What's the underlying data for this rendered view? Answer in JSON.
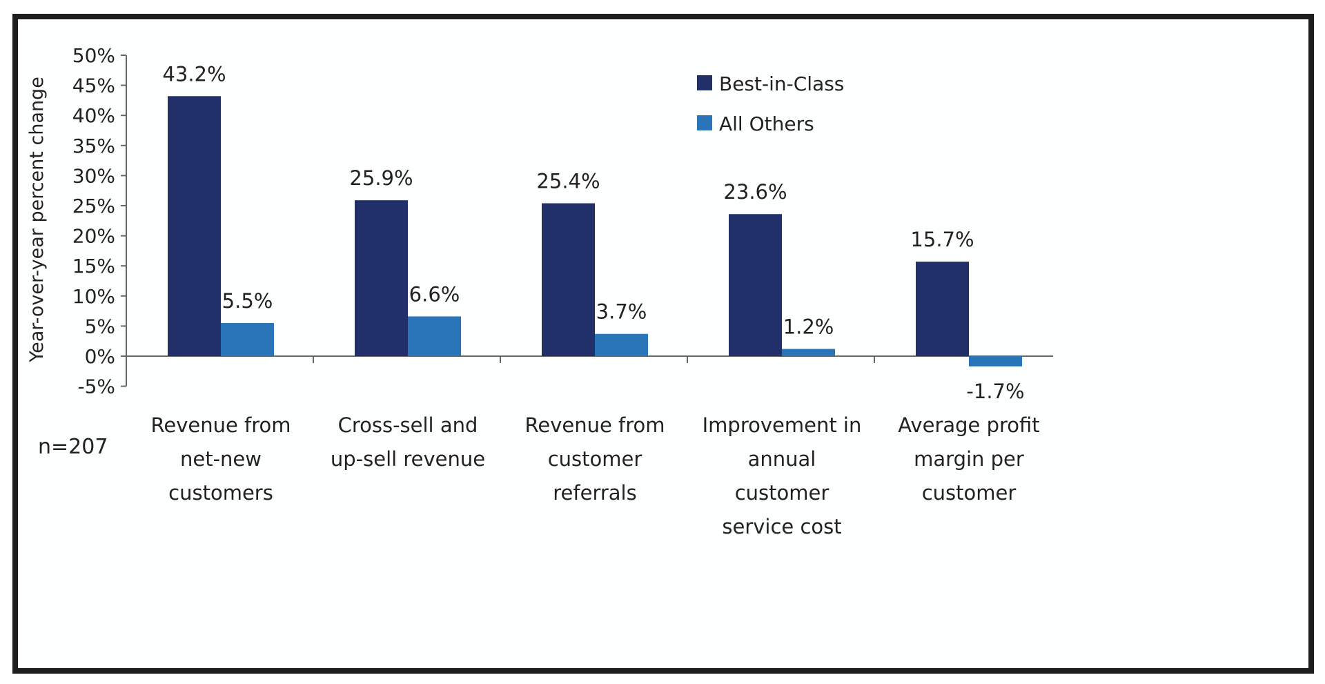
{
  "chart_data": {
    "type": "bar",
    "title": "",
    "xlabel": "",
    "ylabel": "Year-over-year percent change",
    "ylim": [
      -5,
      50
    ],
    "yticks": [
      "50%",
      "45%",
      "40%",
      "35%",
      "30%",
      "25%",
      "20%",
      "15%",
      "10%",
      "5%",
      "0%",
      "-5%"
    ],
    "ytick_values": [
      50,
      45,
      40,
      35,
      30,
      25,
      20,
      15,
      10,
      5,
      0,
      -5
    ],
    "grid": false,
    "legend_position": "top-right",
    "categories": [
      [
        "Revenue from",
        "net-new",
        "customers"
      ],
      [
        "Cross-sell and",
        "up-sell revenue"
      ],
      [
        "Revenue from",
        "customer",
        "referrals"
      ],
      [
        "Improvement in",
        "annual",
        "customer",
        "service cost"
      ],
      [
        "Average profit",
        "margin per",
        "customer"
      ]
    ],
    "series": [
      {
        "name": "Best-in-Class",
        "color": "#22306a",
        "values": [
          43.2,
          25.9,
          25.4,
          23.6,
          15.7
        ],
        "labels": [
          "43.2%",
          "25.9%",
          "25.4%",
          "23.6%",
          "15.7%"
        ]
      },
      {
        "name": "All Others",
        "color": "#2a74b8",
        "values": [
          5.5,
          6.6,
          3.7,
          1.2,
          -1.7
        ],
        "labels": [
          "5.5%",
          "6.6%",
          "3.7%",
          "1.2%",
          "-1.7%"
        ]
      }
    ],
    "note": "n=207"
  }
}
